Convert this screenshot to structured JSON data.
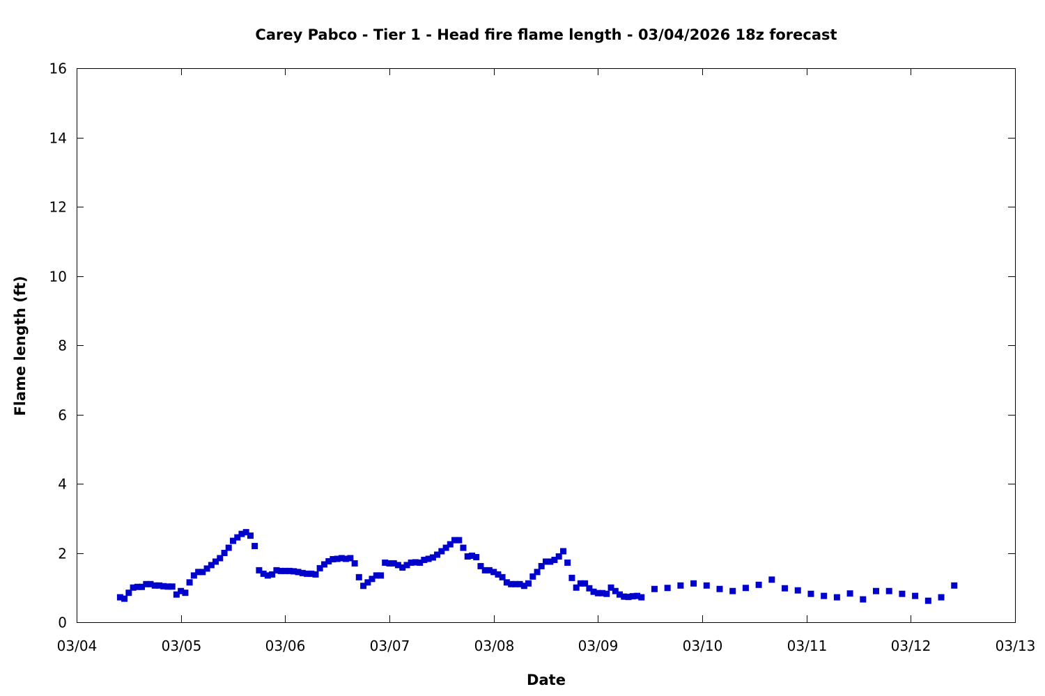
{
  "chart_data": {
    "type": "scatter",
    "title": "Carey Pabco - Tier 1 - Head fire flame length - 03/04/2026 18z forecast",
    "xlabel": "Date",
    "ylabel": "Flame length (ft)",
    "x_ticks": [
      "03/04",
      "03/05",
      "03/06",
      "03/07",
      "03/08",
      "03/09",
      "03/10",
      "03/11",
      "03/12",
      "03/13"
    ],
    "x_tick_positions_days": [
      0,
      1,
      2,
      3,
      4,
      5,
      6,
      7,
      8,
      9
    ],
    "xlim_days": [
      0,
      9
    ],
    "ylim": [
      0,
      16
    ],
    "y_ticks": [
      0,
      2,
      4,
      6,
      8,
      10,
      12,
      14,
      16
    ],
    "grid": false,
    "marker_color": "#0000cc",
    "series": [
      {
        "name": "",
        "x_days": [
          0.417,
          0.458,
          0.5,
          0.542,
          0.583,
          0.625,
          0.667,
          0.708,
          0.75,
          0.792,
          0.833,
          0.875,
          0.917,
          0.958,
          1.0,
          1.042,
          1.083,
          1.125,
          1.167,
          1.208,
          1.25,
          1.292,
          1.333,
          1.375,
          1.417,
          1.458,
          1.5,
          1.542,
          1.583,
          1.625,
          1.667,
          1.708,
          1.75,
          1.792,
          1.833,
          1.875,
          1.917,
          1.958,
          2.0,
          2.042,
          2.083,
          2.125,
          2.167,
          2.208,
          2.25,
          2.292,
          2.333,
          2.375,
          2.417,
          2.458,
          2.5,
          2.542,
          2.583,
          2.625,
          2.667,
          2.708,
          2.75,
          2.792,
          2.833,
          2.875,
          2.917,
          2.958,
          3.0,
          3.042,
          3.083,
          3.125,
          3.167,
          3.208,
          3.25,
          3.292,
          3.333,
          3.375,
          3.417,
          3.458,
          3.5,
          3.542,
          3.583,
          3.625,
          3.667,
          3.708,
          3.75,
          3.792,
          3.833,
          3.875,
          3.917,
          3.958,
          4.0,
          4.042,
          4.083,
          4.125,
          4.167,
          4.208,
          4.25,
          4.292,
          4.333,
          4.375,
          4.417,
          4.458,
          4.5,
          4.542,
          4.583,
          4.625,
          4.667,
          4.708,
          4.75,
          4.792,
          4.833,
          4.875,
          4.917,
          4.958,
          5.0,
          5.042,
          5.083,
          5.125,
          5.167,
          5.208,
          5.25,
          5.292,
          5.333,
          5.375,
          5.417,
          5.542,
          5.667,
          5.792,
          5.917,
          6.042,
          6.167,
          6.292,
          6.417,
          6.542,
          6.667,
          6.792,
          6.917,
          7.042,
          7.167,
          7.292,
          7.417,
          7.542,
          7.667,
          7.792,
          7.917,
          8.042,
          8.167,
          8.292,
          8.417
        ],
        "y": [
          0.72,
          0.68,
          0.85,
          1.0,
          1.02,
          1.02,
          1.1,
          1.1,
          1.06,
          1.06,
          1.04,
          1.03,
          1.03,
          0.8,
          0.9,
          0.85,
          1.15,
          1.35,
          1.45,
          1.45,
          1.55,
          1.65,
          1.75,
          1.85,
          2.0,
          2.15,
          2.35,
          2.45,
          2.55,
          2.6,
          2.5,
          2.2,
          1.5,
          1.4,
          1.35,
          1.38,
          1.5,
          1.48,
          1.48,
          1.48,
          1.47,
          1.45,
          1.42,
          1.4,
          1.4,
          1.38,
          1.56,
          1.67,
          1.76,
          1.82,
          1.83,
          1.85,
          1.83,
          1.85,
          1.7,
          1.3,
          1.05,
          1.15,
          1.25,
          1.35,
          1.35,
          1.72,
          1.7,
          1.7,
          1.65,
          1.58,
          1.65,
          1.72,
          1.73,
          1.72,
          1.8,
          1.83,
          1.87,
          1.95,
          2.05,
          2.15,
          2.25,
          2.37,
          2.37,
          2.15,
          1.9,
          1.92,
          1.88,
          1.62,
          1.5,
          1.5,
          1.45,
          1.38,
          1.3,
          1.15,
          1.1,
          1.1,
          1.1,
          1.05,
          1.12,
          1.32,
          1.45,
          1.62,
          1.75,
          1.75,
          1.8,
          1.9,
          2.05,
          1.72,
          1.28,
          1.0,
          1.12,
          1.12,
          0.98,
          0.88,
          0.84,
          0.84,
          0.82,
          1.0,
          0.9,
          0.8,
          0.74,
          0.73,
          0.75,
          0.76,
          0.72,
          0.96,
          0.99,
          1.06,
          1.12,
          1.06,
          0.96,
          0.9,
          0.99,
          1.08,
          1.23,
          0.98,
          0.92,
          0.82,
          0.76,
          0.72,
          0.83,
          0.66,
          0.9,
          0.9,
          0.82,
          0.76,
          0.62,
          0.72,
          1.06
        ]
      }
    ]
  }
}
